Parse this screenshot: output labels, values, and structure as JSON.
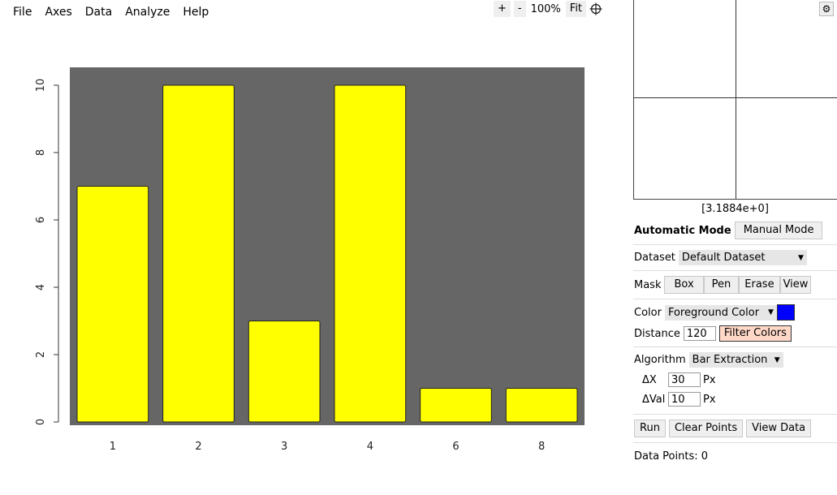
{
  "menu": [
    "File",
    "Axes",
    "Data",
    "Analyze",
    "Help"
  ],
  "zoom": {
    "plus": "+",
    "minus": "-",
    "level": "100%",
    "fit": "Fit"
  },
  "magnifier": {
    "gear": "⚙",
    "readout": "[3.1884e+0]"
  },
  "mode": {
    "active": "Automatic Mode",
    "manual": "Manual Mode"
  },
  "dataset": {
    "label": "Dataset",
    "selected": "Default Dataset"
  },
  "mask": {
    "label": "Mask",
    "buttons": [
      "Box",
      "Pen",
      "Erase",
      "View"
    ]
  },
  "color": {
    "label": "Color",
    "selected": "Foreground Color",
    "swatch": "#0000ff"
  },
  "distance": {
    "label": "Distance",
    "value": "120",
    "filter": "Filter Colors"
  },
  "algorithm": {
    "label": "Algorithm",
    "selected": "Bar Extraction"
  },
  "dx": {
    "label": "ΔX",
    "value": "30",
    "unit": "Px"
  },
  "dval": {
    "label": "ΔVal",
    "value": "10",
    "unit": "Px"
  },
  "actions": {
    "run": "Run",
    "clear": "Clear Points",
    "view": "View Data"
  },
  "points": "Data Points: 0",
  "chart_data": {
    "type": "bar",
    "categories": [
      "1",
      "2",
      "3",
      "4",
      "6",
      "8"
    ],
    "values": [
      7,
      10,
      3,
      10,
      1,
      1
    ],
    "ylim": [
      0,
      10
    ],
    "yticks": [
      "0",
      "2",
      "4",
      "6",
      "8",
      "10"
    ],
    "bar_color": "#ffff00",
    "background": "#666666",
    "title": "",
    "xlabel": "",
    "ylabel": ""
  }
}
